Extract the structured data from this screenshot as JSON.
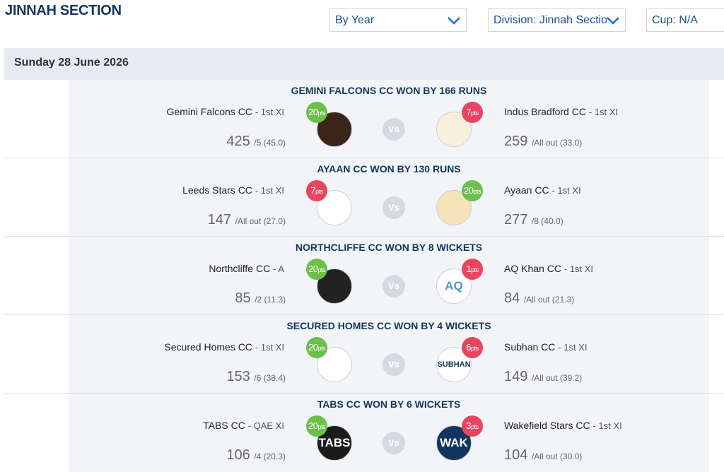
{
  "header": {
    "title": "JINNAH SECTION"
  },
  "filters": [
    "By Year",
    "Division: Jinnah Section",
    "Cup: N/A"
  ],
  "date": "Sunday 28 June 2026",
  "vs_label": "Vs",
  "pts_label": "pts",
  "matches": [
    {
      "result": "GEMINI FALCONS CC WON BY 166 RUNS",
      "home": {
        "team": "Gemini Falcons CC",
        "xi": "- 1st XI",
        "pts": 20,
        "runs": 425,
        "detail": "/5 (45.0)"
      },
      "away": {
        "team": "Indus Bradford CC",
        "xi": "- 1st XI",
        "pts": 7,
        "runs": 259,
        "detail": "/All out (33.0)"
      }
    },
    {
      "result": "AYAAN CC WON BY 130 RUNS",
      "home": {
        "team": "Leeds Stars CC",
        "xi": "- 1st XI",
        "pts": 7,
        "runs": 147,
        "detail": "/All out (27.0)"
      },
      "away": {
        "team": "Ayaan CC",
        "xi": "- 1st XI",
        "pts": 20,
        "runs": 277,
        "detail": "/8 (40.0)"
      }
    },
    {
      "result": "NORTHCLIFFE CC WON BY 8 WICKETS",
      "home": {
        "team": "Northcliffe CC",
        "xi": "- A",
        "pts": 20,
        "runs": 85,
        "detail": "/2 (11.3)"
      },
      "away": {
        "team": "AQ Khan CC",
        "xi": "- 1st XI",
        "pts": 1,
        "runs": 84,
        "detail": "/All out (21.3)",
        "logo_text": "AQ"
      }
    },
    {
      "result": "SECURED HOMES CC WON BY 4 WICKETS",
      "home": {
        "team": "Secured Homes CC",
        "xi": "- 1st XI",
        "pts": 20,
        "runs": 153,
        "detail": "/6 (38.4)"
      },
      "away": {
        "team": "Subhan CC",
        "xi": "- 1st XI",
        "pts": 6,
        "runs": 149,
        "detail": "/All out (39.2)",
        "logo_text": "SUBHAN"
      }
    },
    {
      "result": "TABS CC WON BY 6 WICKETS",
      "home": {
        "team": "TABS CC",
        "xi": "- QAE XI",
        "pts": 20,
        "runs": 106,
        "detail": "/4 (20.3)",
        "logo_text": "TABS"
      },
      "away": {
        "team": "Wakefield Stars CC",
        "xi": "- 1st XI",
        "pts": 3,
        "runs": 104,
        "detail": "/All out (30.0)",
        "logo_text": "WAK"
      }
    }
  ]
}
